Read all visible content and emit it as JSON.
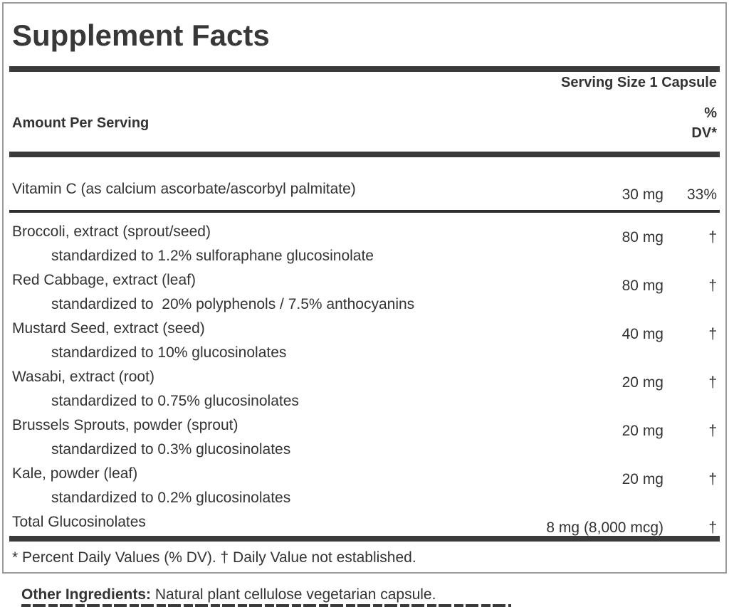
{
  "label": {
    "title": "Supplement Facts",
    "serving_size": "Serving Size 1 Capsule",
    "column_headers": {
      "amount_per_serving": "Amount Per Serving",
      "dv_line1": "%",
      "dv_line2": "DV*"
    },
    "rows": [
      {
        "name": "Vitamin C (as calcium ascorbate/ascorbyl palmitate)",
        "amount": "30 mg",
        "dv": "33%"
      },
      {
        "name": "Broccoli, extract (sprout/seed)",
        "amount": "80 mg",
        "dv": "†",
        "detail": "standardized to 1.2% sulforaphane glucosinolate"
      },
      {
        "name": "Red Cabbage, extract (leaf)",
        "amount": "80 mg",
        "dv": "†",
        "detail": "standardized to  20% polyphenols / 7.5% anthocyanins"
      },
      {
        "name": "Mustard Seed, extract (seed)",
        "amount": "40 mg",
        "dv": "†",
        "detail": "standardized to 10% glucosinolates"
      },
      {
        "name": "Wasabi, extract (root)",
        "amount": "20 mg",
        "dv": "†",
        "detail": "standardized to 0.75% glucosinolates"
      },
      {
        "name": "Brussels Sprouts, powder (sprout)",
        "amount": "20 mg",
        "dv": "†",
        "detail": "standardized to 0.3% glucosinolates"
      },
      {
        "name": "Kale, powder (leaf)",
        "amount": "20 mg",
        "dv": "†",
        "detail": "standardized to 0.2% glucosinolates"
      },
      {
        "name": "Total Glucosinolates",
        "amount": "8 mg (8,000 mcg)",
        "dv": "†"
      }
    ],
    "footnote": "* Percent Daily Values (% DV). † Daily Value not established.",
    "other_ingredients": {
      "label": "Other Ingredients:",
      "text": " Natural plant cellulose vegetarian capsule."
    },
    "colors": {
      "text": "#333333",
      "rule": "#3a3a3a",
      "border": "#9b9b9b",
      "background": "#ffffff"
    }
  }
}
